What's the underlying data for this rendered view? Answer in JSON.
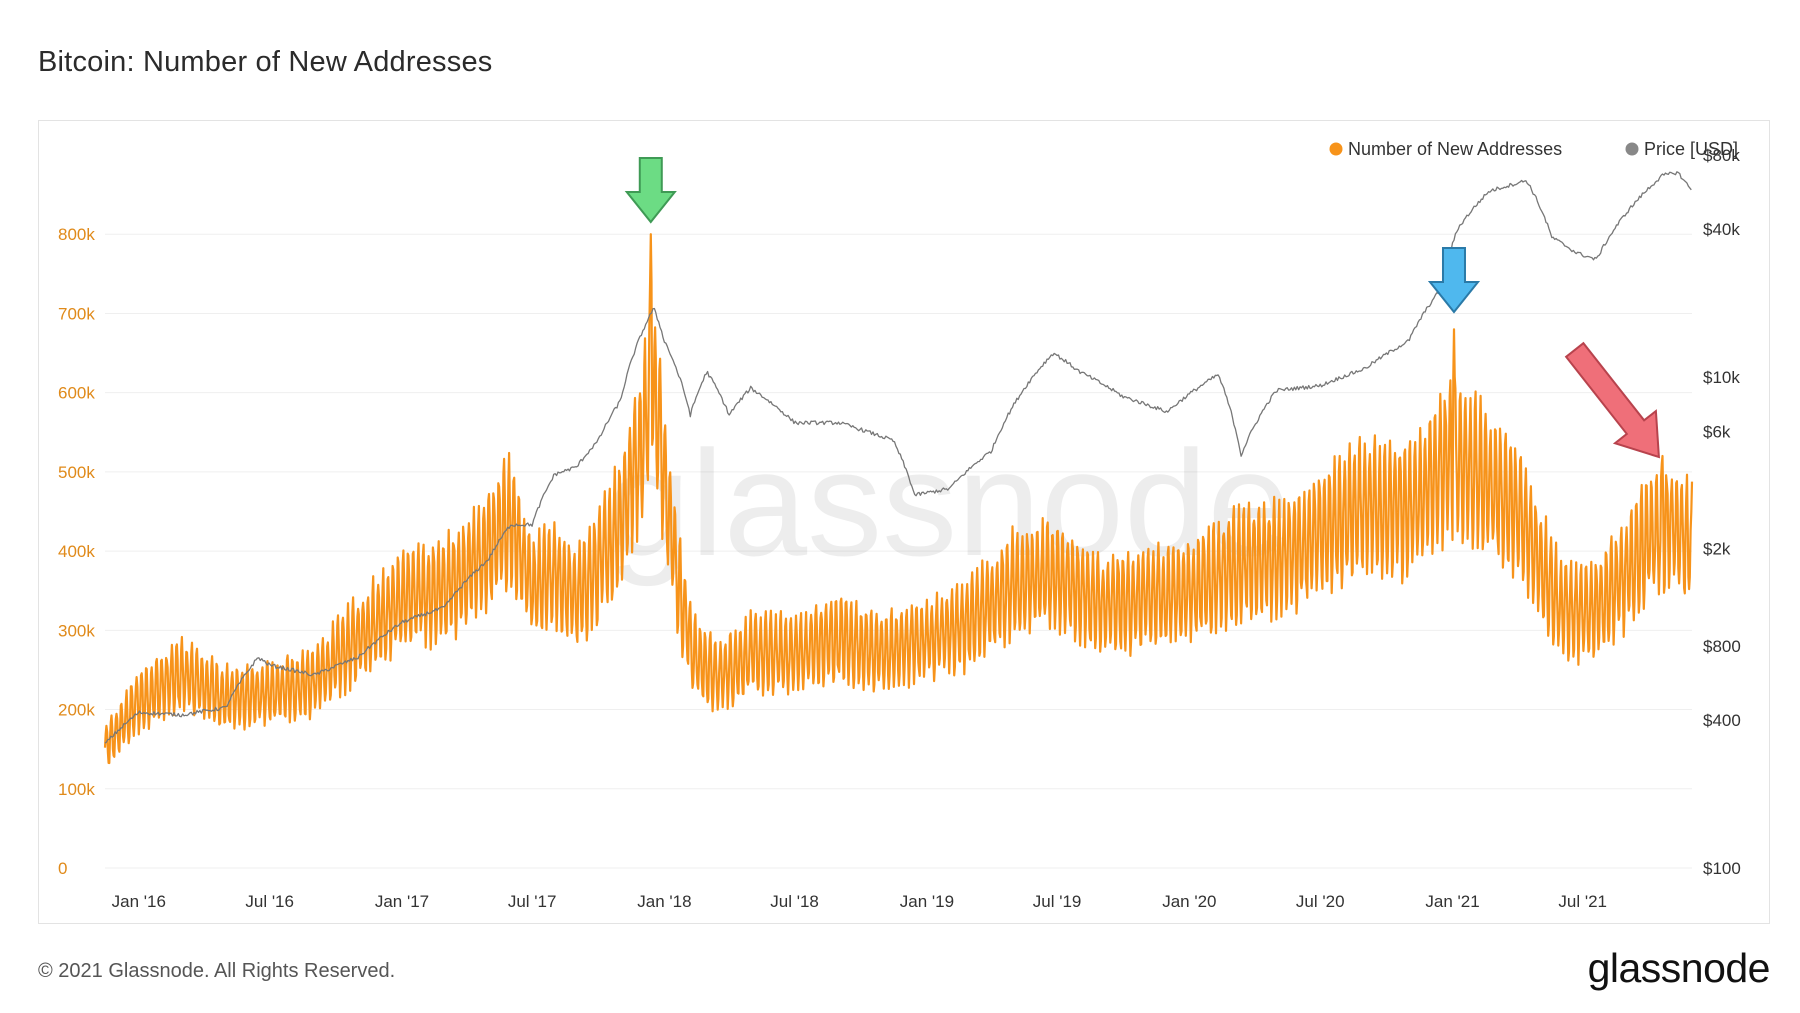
{
  "header": {
    "title": "Bitcoin: Number of New Addresses"
  },
  "footer": {
    "copyright": "© 2021 Glassnode. All Rights Reserved.",
    "brand": "glassnode"
  },
  "watermark": "glassnode",
  "colors": {
    "addresses": "#f7931a",
    "price": "#777777",
    "green_arrow": "#6cdc84",
    "blue_arrow": "#4fb8ee",
    "red_arrow": "#ef6f79"
  },
  "chart_data": {
    "type": "line",
    "legend": [
      "Number of New Addresses",
      "Price [USD]"
    ],
    "legend_placement": "top-right",
    "grid": true,
    "x_ticks": [
      "Jan '16",
      "Jul '16",
      "Jan '17",
      "Jul '17",
      "Jan '18",
      "Jul '18",
      "Jan '19",
      "Jul '19",
      "Jan '20",
      "Jul '20",
      "Jan '21",
      "Jul '21"
    ],
    "y_left": {
      "scale": "linear",
      "ylim": [
        0,
        900000
      ],
      "ticks": [
        0,
        100000,
        200000,
        300000,
        400000,
        500000,
        600000,
        700000,
        800000
      ],
      "tick_labels": [
        "0",
        "100k",
        "200k",
        "300k",
        "400k",
        "500k",
        "600k",
        "700k",
        "800k"
      ]
    },
    "y_right": {
      "scale": "log",
      "ylim": [
        100,
        80000
      ],
      "ticks": [
        100,
        400,
        800,
        2000,
        6000,
        10000,
        40000,
        80000
      ],
      "tick_labels": [
        "$100",
        "$400",
        "$800",
        "$2k",
        "$6k",
        "$10k",
        "$40k",
        "$80k"
      ]
    },
    "x_range": [
      "2015-11-15",
      "2021-11-30"
    ],
    "series": [
      {
        "name": "Number of New Addresses",
        "axis": "left",
        "color": "#f7931a",
        "points": [
          [
            "2015-11-15",
            150000
          ],
          [
            "2016-01-01",
            210000
          ],
          [
            "2016-03-01",
            245000
          ],
          [
            "2016-05-01",
            215000
          ],
          [
            "2016-07-01",
            220000
          ],
          [
            "2016-09-01",
            235000
          ],
          [
            "2016-11-01",
            290000
          ],
          [
            "2017-01-01",
            340000
          ],
          [
            "2017-03-01",
            350000
          ],
          [
            "2017-05-01",
            400000
          ],
          [
            "2017-06-01",
            440000
          ],
          [
            "2017-07-01",
            350000
          ],
          [
            "2017-08-01",
            370000
          ],
          [
            "2017-09-01",
            340000
          ],
          [
            "2017-10-01",
            380000
          ],
          [
            "2017-11-01",
            440000
          ],
          [
            "2017-12-01",
            540000
          ],
          [
            "2017-12-15",
            620000
          ],
          [
            "2018-01-01",
            500000
          ],
          [
            "2018-01-20",
            360000
          ],
          [
            "2018-02-10",
            270000
          ],
          [
            "2018-03-15",
            240000
          ],
          [
            "2018-05-01",
            270000
          ],
          [
            "2018-07-01",
            270000
          ],
          [
            "2018-09-01",
            290000
          ],
          [
            "2018-11-01",
            270000
          ],
          [
            "2019-01-01",
            290000
          ],
          [
            "2019-03-01",
            310000
          ],
          [
            "2019-05-01",
            360000
          ],
          [
            "2019-07-01",
            370000
          ],
          [
            "2019-09-01",
            330000
          ],
          [
            "2019-11-01",
            340000
          ],
          [
            "2020-01-01",
            350000
          ],
          [
            "2020-03-01",
            380000
          ],
          [
            "2020-05-01",
            390000
          ],
          [
            "2020-07-01",
            420000
          ],
          [
            "2020-09-01",
            460000
          ],
          [
            "2020-11-01",
            450000
          ],
          [
            "2021-01-01",
            520000
          ],
          [
            "2021-02-01",
            500000
          ],
          [
            "2021-03-01",
            480000
          ],
          [
            "2021-04-01",
            450000
          ],
          [
            "2021-05-01",
            390000
          ],
          [
            "2021-06-01",
            330000
          ],
          [
            "2021-07-01",
            320000
          ],
          [
            "2021-08-01",
            340000
          ],
          [
            "2021-09-01",
            370000
          ],
          [
            "2021-10-01",
            420000
          ],
          [
            "2021-11-01",
            430000
          ],
          [
            "2021-11-30",
            410000
          ]
        ],
        "peaks": [
          [
            "2017-12-13",
            800000
          ],
          [
            "2021-01-03",
            680000
          ],
          [
            "2021-10-20",
            520000
          ]
        ]
      },
      {
        "name": "Price [USD]",
        "axis": "right",
        "color": "#777777",
        "scale": "log",
        "points": [
          [
            "2015-11-15",
            320
          ],
          [
            "2016-01-01",
            430
          ],
          [
            "2016-03-01",
            420
          ],
          [
            "2016-05-01",
            450
          ],
          [
            "2016-06-15",
            720
          ],
          [
            "2016-07-01",
            670
          ],
          [
            "2016-09-01",
            610
          ],
          [
            "2016-11-01",
            720
          ],
          [
            "2017-01-01",
            1000
          ],
          [
            "2017-03-01",
            1150
          ],
          [
            "2017-05-01",
            1800
          ],
          [
            "2017-06-01",
            2500
          ],
          [
            "2017-07-01",
            2500
          ],
          [
            "2017-08-01",
            4000
          ],
          [
            "2017-09-01",
            4300
          ],
          [
            "2017-10-01",
            5500
          ],
          [
            "2017-11-01",
            8000
          ],
          [
            "2017-12-17",
            19000
          ],
          [
            "2018-01-01",
            14000
          ],
          [
            "2018-02-06",
            7000
          ],
          [
            "2018-03-01",
            10500
          ],
          [
            "2018-04-01",
            7000
          ],
          [
            "2018-05-01",
            9000
          ],
          [
            "2018-07-01",
            6500
          ],
          [
            "2018-09-01",
            6500
          ],
          [
            "2018-11-15",
            5500
          ],
          [
            "2018-12-15",
            3300
          ],
          [
            "2019-02-01",
            3500
          ],
          [
            "2019-04-01",
            5000
          ],
          [
            "2019-06-26",
            12500
          ],
          [
            "2019-08-01",
            10500
          ],
          [
            "2019-10-01",
            8300
          ],
          [
            "2019-12-01",
            7200
          ],
          [
            "2020-02-10",
            10200
          ],
          [
            "2020-03-13",
            4800
          ],
          [
            "2020-05-01",
            8800
          ],
          [
            "2020-07-01",
            9200
          ],
          [
            "2020-09-01",
            10800
          ],
          [
            "2020-11-01",
            14000
          ],
          [
            "2020-12-17",
            23000
          ],
          [
            "2021-01-08",
            40000
          ],
          [
            "2021-02-21",
            57000
          ],
          [
            "2021-04-14",
            63000
          ],
          [
            "2021-05-19",
            37000
          ],
          [
            "2021-06-22",
            32000
          ],
          [
            "2021-07-20",
            30000
          ],
          [
            "2021-09-01",
            47000
          ],
          [
            "2021-10-20",
            66000
          ],
          [
            "2021-11-10",
            68000
          ],
          [
            "2021-11-30",
            57000
          ]
        ]
      }
    ],
    "annotations": [
      {
        "type": "arrow-down",
        "color": "green",
        "x": "2017-12-13"
      },
      {
        "type": "arrow-down",
        "color": "blue",
        "x": "2021-01-03"
      },
      {
        "type": "arrow-diagonal",
        "color": "red",
        "x_from": "2021-06-20",
        "x_to": "2021-10-15"
      }
    ]
  }
}
